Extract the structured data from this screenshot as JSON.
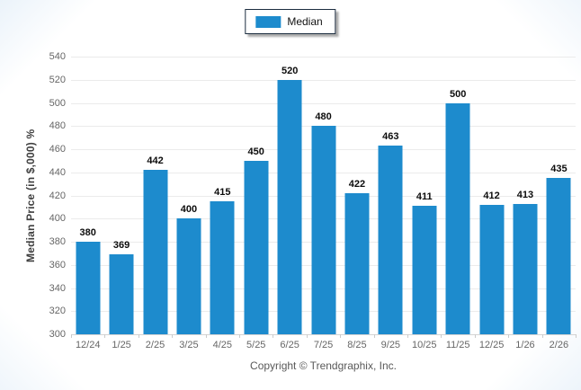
{
  "legend": {
    "label": "Median"
  },
  "y_axis": {
    "title": "Median Price (in $,000) %"
  },
  "footer": {
    "copyright": "Copyright © Trendgraphix, Inc."
  },
  "colors": {
    "bar": "#1d8bcd",
    "grid": "#ebebeb",
    "axis_line": "#d4d4d4",
    "tick_label": "#666666",
    "data_label": "#0c0c0c",
    "legend_border": "#1c2d40"
  },
  "chart_data": {
    "type": "bar",
    "categories": [
      "12/24",
      "1/25",
      "2/25",
      "3/25",
      "4/25",
      "5/25",
      "6/25",
      "7/25",
      "8/25",
      "9/25",
      "10/25",
      "11/25",
      "12/25",
      "1/26",
      "2/26"
    ],
    "series": [
      {
        "name": "Median",
        "values": [
          380,
          369,
          442,
          400,
          415,
          450,
          520,
          480,
          422,
          463,
          411,
          500,
          412,
          413,
          435
        ]
      }
    ],
    "title": "",
    "xlabel": "",
    "ylabel": "Median Price (in $,000) %",
    "ylim": [
      300,
      540
    ],
    "ytick_step": 20,
    "grid": true,
    "legend_position": "top-center"
  }
}
